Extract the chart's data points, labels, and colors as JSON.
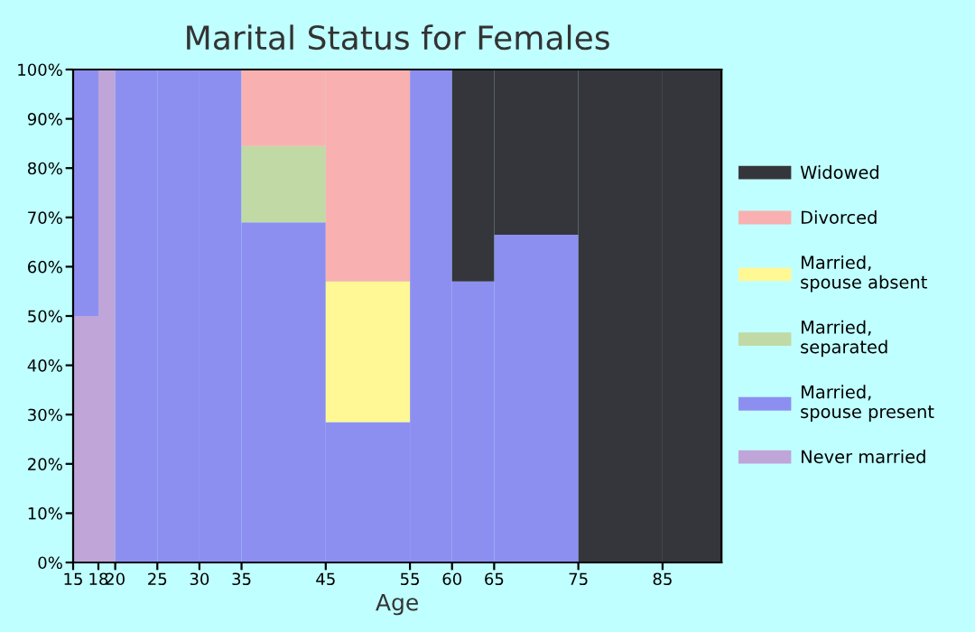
{
  "chart_data": {
    "type": "bar",
    "stacked": true,
    "title": "Marital Status for Females",
    "xlabel": "Age",
    "x": [
      16.5,
      19,
      22.5,
      27.5,
      32.5,
      40,
      50,
      57.5,
      62.5,
      70,
      80,
      88.5
    ],
    "xlim": [
      15,
      92
    ],
    "xticks": [
      15,
      18,
      20,
      25,
      30,
      35,
      45,
      55,
      60,
      65,
      75,
      85
    ],
    "ylim": [
      0,
      100
    ],
    "yticks": [
      {
        "value": 0,
        "label": "0%"
      },
      {
        "value": 10,
        "label": "10%"
      },
      {
        "value": 20,
        "label": "20%"
      },
      {
        "value": 30,
        "label": "30%"
      },
      {
        "value": 40,
        "label": "40%"
      },
      {
        "value": 50,
        "label": "50%"
      },
      {
        "value": 60,
        "label": "60%"
      },
      {
        "value": 70,
        "label": "70%"
      },
      {
        "value": 80,
        "label": "80%"
      },
      {
        "value": 90,
        "label": "90%"
      },
      {
        "value": 100,
        "label": "100%"
      }
    ],
    "grid": false,
    "legend": "right",
    "series": [
      {
        "name": "Never married",
        "color": "#bfa5d8",
        "values": [
          50,
          100,
          0,
          0,
          0,
          0,
          0,
          0,
          0,
          0,
          0,
          0
        ]
      },
      {
        "name": "Married,\nspouse present",
        "color": "#8d8ff0",
        "values": [
          50,
          0,
          100,
          100,
          100,
          69,
          28.5,
          100,
          57,
          66.5,
          0,
          0
        ]
      },
      {
        "name": "Married,\nseparated",
        "color": "#c1d9a4",
        "values": [
          0,
          0,
          0,
          0,
          0,
          15.5,
          0,
          0,
          0,
          0,
          0,
          0
        ]
      },
      {
        "name": "Married,\nspouse absent",
        "color": "#fff894",
        "values": [
          0,
          0,
          0,
          0,
          0,
          0,
          28.5,
          0,
          0,
          0,
          0,
          0
        ]
      },
      {
        "name": "Divorced",
        "color": "#f8b1b0",
        "values": [
          0,
          0,
          0,
          0,
          0,
          15.5,
          43,
          0,
          0,
          0,
          0,
          0
        ]
      },
      {
        "name": "Widowed",
        "color": "#35363b",
        "values": [
          0,
          0,
          0,
          0,
          0,
          0,
          0,
          0,
          43,
          33.5,
          100,
          100
        ]
      }
    ]
  }
}
